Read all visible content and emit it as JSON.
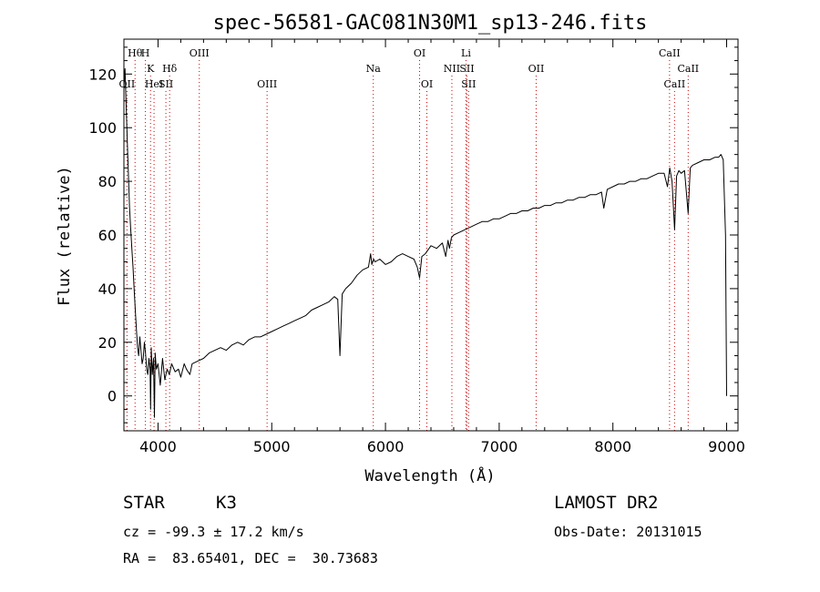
{
  "chart_data": {
    "type": "line",
    "title": "spec-56581-GAC081N30M1_sp13-246.fits",
    "xlabel": "Wavelength (Å)",
    "ylabel": "Flux (relative)",
    "xlim": [
      3700,
      9100
    ],
    "ylim": [
      -13,
      133
    ],
    "xticks": [
      4000,
      5000,
      6000,
      7000,
      8000,
      9000
    ],
    "yticks": [
      0,
      20,
      40,
      60,
      80,
      100,
      120
    ],
    "xtick_labels": [
      "4000",
      "5000",
      "6000",
      "7000",
      "8000",
      "9000"
    ],
    "ytick_labels": [
      "0",
      "20",
      "40",
      "60",
      "80",
      "100",
      "120"
    ],
    "grid": false,
    "series": [
      {
        "color": "#000000",
        "x": [
          3700,
          3710,
          3720,
          3730,
          3740,
          3750,
          3760,
          3770,
          3780,
          3790,
          3800,
          3810,
          3820,
          3830,
          3840,
          3850,
          3860,
          3870,
          3880,
          3890,
          3900,
          3910,
          3920,
          3930,
          3935,
          3940,
          3950,
          3960,
          3968,
          3975,
          3985,
          4000,
          4020,
          4040,
          4060,
          4080,
          4100,
          4120,
          4150,
          4180,
          4200,
          4230,
          4250,
          4280,
          4300,
          4350,
          4400,
          4450,
          4500,
          4550,
          4600,
          4650,
          4700,
          4750,
          4800,
          4850,
          4900,
          4950,
          5000,
          5050,
          5100,
          5150,
          5200,
          5250,
          5300,
          5350,
          5400,
          5450,
          5500,
          5550,
          5580,
          5600,
          5620,
          5650,
          5700,
          5750,
          5800,
          5850,
          5870,
          5880,
          5895,
          5910,
          5950,
          6000,
          6050,
          6100,
          6150,
          6200,
          6250,
          6280,
          6300,
          6320,
          6350,
          6400,
          6450,
          6500,
          6530,
          6550,
          6563,
          6580,
          6600,
          6650,
          6700,
          6750,
          6800,
          6850,
          6900,
          6950,
          7000,
          7050,
          7100,
          7150,
          7200,
          7250,
          7300,
          7350,
          7400,
          7450,
          7500,
          7550,
          7600,
          7650,
          7700,
          7750,
          7800,
          7850,
          7900,
          7920,
          7950,
          8000,
          8050,
          8100,
          8150,
          8200,
          8250,
          8300,
          8350,
          8400,
          8450,
          8480,
          8500,
          8520,
          8542,
          8560,
          8580,
          8600,
          8630,
          8662,
          8680,
          8700,
          8750,
          8800,
          8850,
          8900,
          8930,
          8950,
          8970,
          8990,
          9000
        ],
        "values": [
          115,
          122,
          108,
          95,
          82,
          70,
          62,
          55,
          48,
          40,
          32,
          25,
          18,
          15,
          22,
          17,
          12,
          14,
          20,
          16,
          10,
          8,
          14,
          10,
          -5,
          18,
          8,
          14,
          -8,
          16,
          10,
          12,
          4,
          14,
          6,
          10,
          8,
          12,
          9,
          10,
          7,
          12,
          10,
          8,
          12,
          13,
          14,
          16,
          17,
          18,
          17,
          19,
          20,
          19,
          21,
          22,
          22,
          23,
          24,
          25,
          26,
          27,
          28,
          29,
          30,
          32,
          33,
          34,
          35,
          37,
          36,
          15,
          38,
          40,
          42,
          45,
          47,
          48,
          53,
          49,
          51,
          50,
          51,
          49,
          50,
          52,
          53,
          52,
          51,
          48,
          44,
          52,
          53,
          56,
          55,
          57,
          52,
          58,
          55,
          59,
          60,
          61,
          62,
          63,
          64,
          65,
          65,
          66,
          66,
          67,
          68,
          68,
          69,
          69,
          70,
          70,
          71,
          71,
          72,
          72,
          73,
          73,
          74,
          74,
          75,
          75,
          76,
          70,
          77,
          78,
          79,
          79,
          80,
          80,
          81,
          81,
          82,
          83,
          83,
          78,
          85,
          80,
          62,
          82,
          84,
          83,
          84,
          68,
          85,
          86,
          87,
          88,
          88,
          89,
          89,
          90,
          88,
          60,
          0
        ]
      }
    ],
    "line_markers": {
      "color": "#cc0000",
      "lines": [
        {
          "label": "Hθ",
          "wavelength": 3798,
          "row": 1
        },
        {
          "label": "H",
          "wavelength": 3889,
          "row": 1
        },
        {
          "label": "K",
          "wavelength": 3934,
          "row": 2
        },
        {
          "label": "Hδ",
          "wavelength": 4102,
          "row": 2
        },
        {
          "label": "OII",
          "wavelength": 3727,
          "row": 3
        },
        {
          "label": "HeI",
          "wavelength": 3965,
          "row": 3
        },
        {
          "label": "SII",
          "wavelength": 4069,
          "row": 3
        },
        {
          "label": "OIII",
          "wavelength": 4363,
          "row": 1
        },
        {
          "label": "OIII",
          "wavelength": 4959,
          "row": 3
        },
        {
          "label": "Na",
          "wavelength": 5893,
          "row": 2
        },
        {
          "label": "OI",
          "wavelength": 6300,
          "row": 1
        },
        {
          "label": "OI",
          "wavelength": 6364,
          "row": 3
        },
        {
          "label": "Li",
          "wavelength": 6708,
          "row": 1
        },
        {
          "label": "NII",
          "wavelength": 6584,
          "row": 2
        },
        {
          "label": "SII",
          "wavelength": 6716,
          "row": 2
        },
        {
          "label": "SII",
          "wavelength": 6731,
          "row": 3
        },
        {
          "label": "OII",
          "wavelength": 7325,
          "row": 2
        },
        {
          "label": "CaII",
          "wavelength": 8498,
          "row": 1
        },
        {
          "label": "CaII",
          "wavelength": 8542,
          "row": 3
        },
        {
          "label": "CaII",
          "wavelength": 8662,
          "row": 2
        }
      ]
    }
  },
  "info": {
    "object_type": "STAR",
    "subclass": "K3",
    "survey": "LAMOST DR2",
    "redshift_line": "cz = -99.3 ± 17.2 km/s",
    "obs_date_line": "Obs-Date: 20131015",
    "coords_line": "RA =  83.65401, DEC =  30.73683"
  }
}
